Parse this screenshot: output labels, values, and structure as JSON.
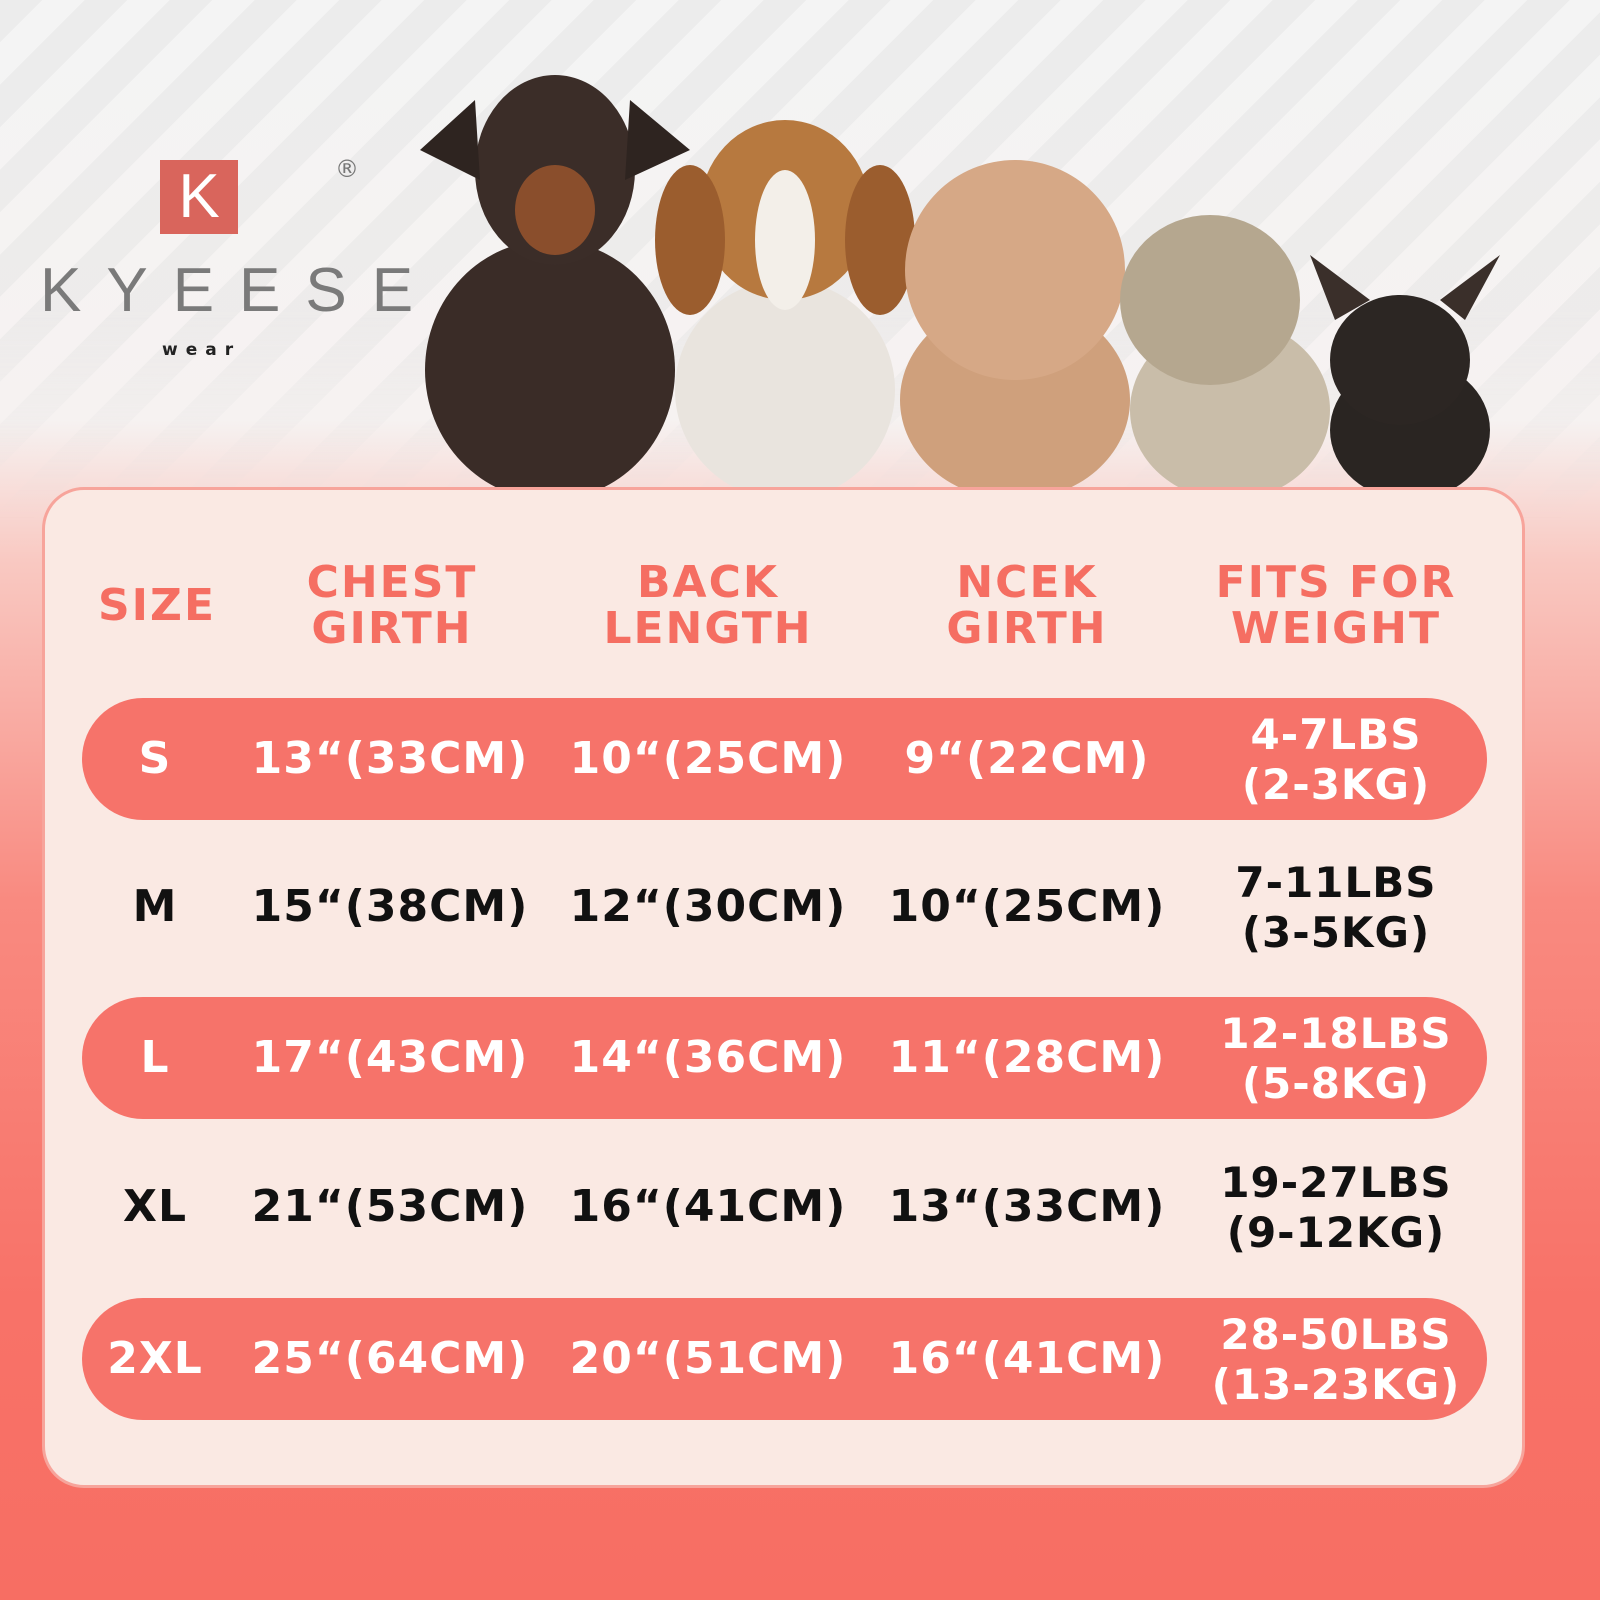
{
  "brand": {
    "mark": "K",
    "name": "KYEESE",
    "sub": "wear",
    "registered": "®"
  },
  "colors": {
    "accent": "#f6736a",
    "card": "#fae9e3",
    "header_text": "#f56e62"
  },
  "table": {
    "headers": [
      "SIZE",
      "CHEST\nGIRTH",
      "BACK\nLENGTH",
      "NCEK\nGIRTH",
      "FITS FOR\nWEIGHT"
    ],
    "rows": [
      {
        "size": "S",
        "chest": "13“(33CM)",
        "back": "10“(25CM)",
        "neck": "9“(22CM)",
        "weight_lbs": "4-7LBS",
        "weight_kg": "(2-3KG)",
        "highlighted": true
      },
      {
        "size": "M",
        "chest": "15“(38CM)",
        "back": "12“(30CM)",
        "neck": "10“(25CM)",
        "weight_lbs": "7-11LBS",
        "weight_kg": "(3-5KG)",
        "highlighted": false
      },
      {
        "size": "L",
        "chest": "17“(43CM)",
        "back": "14“(36CM)",
        "neck": "11“(28CM)",
        "weight_lbs": "12-18LBS",
        "weight_kg": "(5-8KG)",
        "highlighted": true
      },
      {
        "size": "XL",
        "chest": "21“(53CM)",
        "back": "16“(41CM)",
        "neck": "13“(33CM)",
        "weight_lbs": "19-27LBS",
        "weight_kg": "(9-12KG)",
        "highlighted": false
      },
      {
        "size": "2XL",
        "chest": "25“(64CM)",
        "back": "20“(51CM)",
        "neck": "16“(41CM)",
        "weight_lbs": "28-50LBS",
        "weight_kg": "(13-23KG)",
        "highlighted": true
      }
    ]
  }
}
